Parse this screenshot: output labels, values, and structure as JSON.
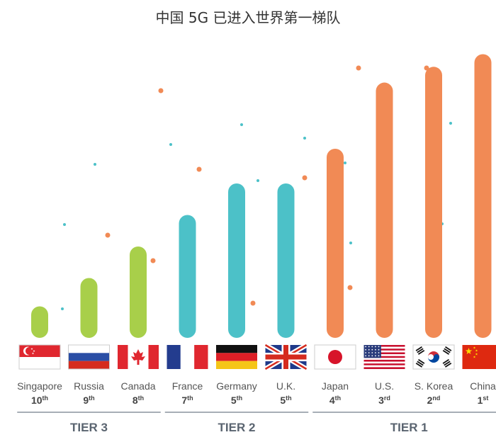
{
  "title": "中国 5G 已进入世界第一梯队",
  "colors": {
    "tier3": "#a8cf4a",
    "tier2": "#4cc1c8",
    "tier1": "#f18a55",
    "dot_blue": "#4cc1c8",
    "dot_orange": "#f18a55"
  },
  "chart_data": {
    "type": "bar",
    "title": "中国 5G 已进入世界第一梯队",
    "categories": [
      "Singapore",
      "Russia",
      "Canada",
      "France",
      "Germany",
      "U.K.",
      "Japan",
      "U.S.",
      "S. Korea",
      "China"
    ],
    "ranks": [
      {
        "num": "10",
        "suffix": "th"
      },
      {
        "num": "9",
        "suffix": "th"
      },
      {
        "num": "8",
        "suffix": "th"
      },
      {
        "num": "7",
        "suffix": "th"
      },
      {
        "num": "5",
        "suffix": "th"
      },
      {
        "num": "5",
        "suffix": "th"
      },
      {
        "num": "4",
        "suffix": "th"
      },
      {
        "num": "3",
        "suffix": "rd"
      },
      {
        "num": "2",
        "suffix": "nd"
      },
      {
        "num": "1",
        "suffix": "st"
      }
    ],
    "values": [
      10,
      19,
      29,
      39,
      49,
      49,
      60,
      81,
      86,
      90
    ],
    "tier_of_bar": [
      3,
      3,
      3,
      2,
      2,
      2,
      1,
      1,
      1,
      1
    ],
    "ylim": [
      0,
      100
    ],
    "flags": [
      "singapore-flag",
      "russia-flag",
      "canada-flag",
      "france-flag",
      "germany-flag",
      "uk-flag",
      "japan-flag",
      "us-flag",
      "south-korea-flag",
      "china-flag"
    ],
    "tiers": [
      {
        "label": "TIER 3",
        "first": 0,
        "last": 2,
        "color_key": "tier3"
      },
      {
        "label": "TIER 2",
        "first": 3,
        "last": 5,
        "color_key": "tier2"
      },
      {
        "label": "TIER 1",
        "first": 6,
        "last": 9,
        "color_key": "tier1"
      }
    ]
  }
}
